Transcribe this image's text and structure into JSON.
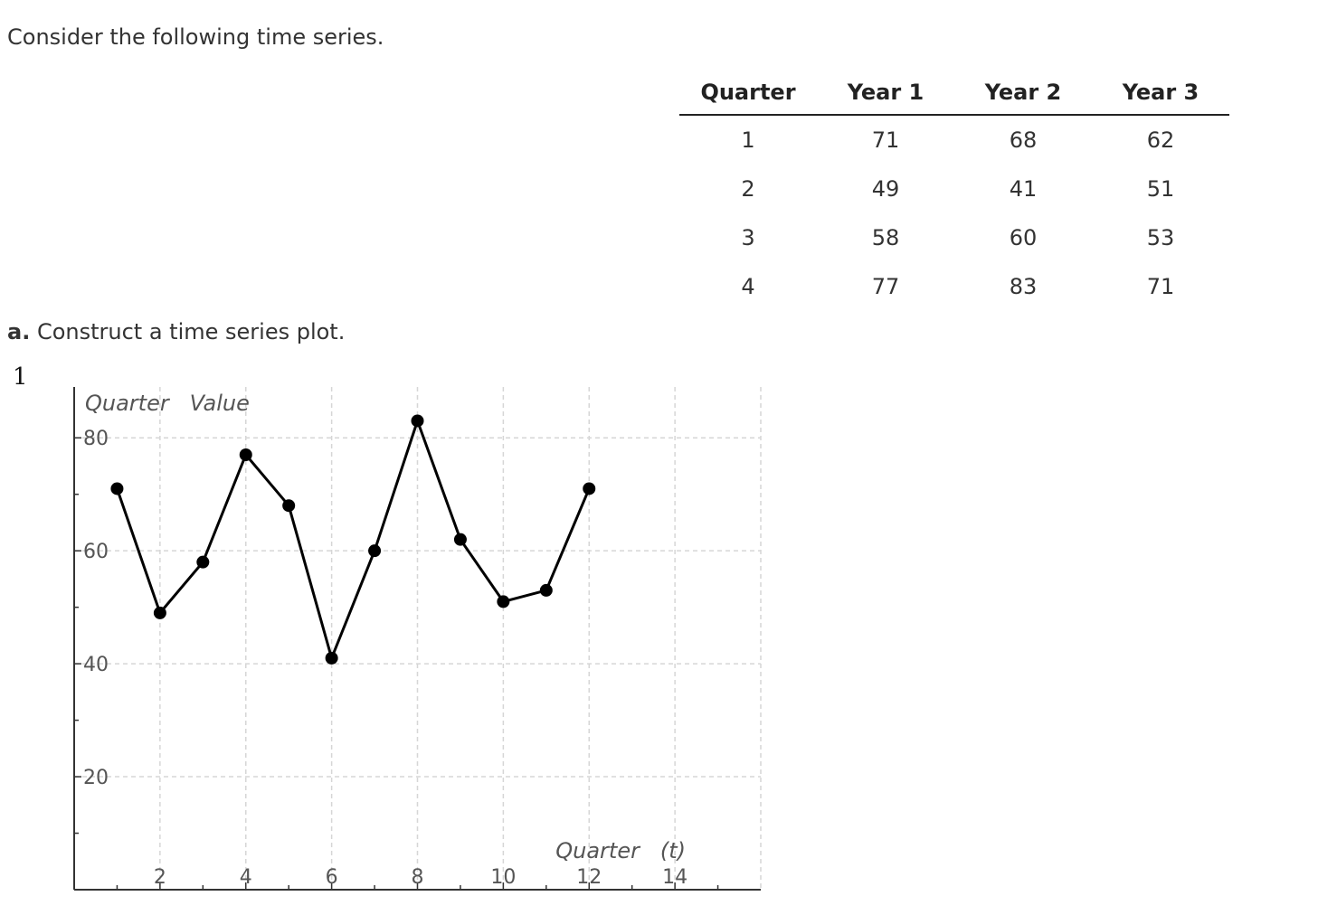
{
  "intro_text": "Consider the following time series.",
  "table": {
    "headers": [
      "Quarter",
      "Year 1",
      "Year 2",
      "Year 3"
    ],
    "rows": [
      [
        "1",
        "71",
        "68",
        "62"
      ],
      [
        "2",
        "49",
        "41",
        "51"
      ],
      [
        "3",
        "58",
        "60",
        "53"
      ],
      [
        "4",
        "77",
        "83",
        "71"
      ]
    ]
  },
  "part_a": {
    "label": "a.",
    "text": "Construct a time series plot."
  },
  "item_number": "1",
  "chart_data": {
    "type": "line",
    "ylabel": "Quarter   Value",
    "xlabel": "Quarter   (t)",
    "x": [
      1,
      2,
      3,
      4,
      5,
      6,
      7,
      8,
      9,
      10,
      11,
      12
    ],
    "series": [
      {
        "values": [
          71,
          49,
          58,
          77,
          68,
          41,
          60,
          83,
          62,
          51,
          53,
          71
        ]
      }
    ],
    "xlim": [
      0,
      16
    ],
    "ylim": [
      0,
      89
    ],
    "x_ticks": [
      2,
      4,
      6,
      8,
      10,
      12,
      14
    ],
    "y_ticks": [
      20,
      40,
      60,
      80
    ],
    "grid": true,
    "colors": {
      "line": "#000000",
      "grid": "#d6d6d6",
      "axis": "#333333",
      "tick_label": "#555555"
    }
  }
}
